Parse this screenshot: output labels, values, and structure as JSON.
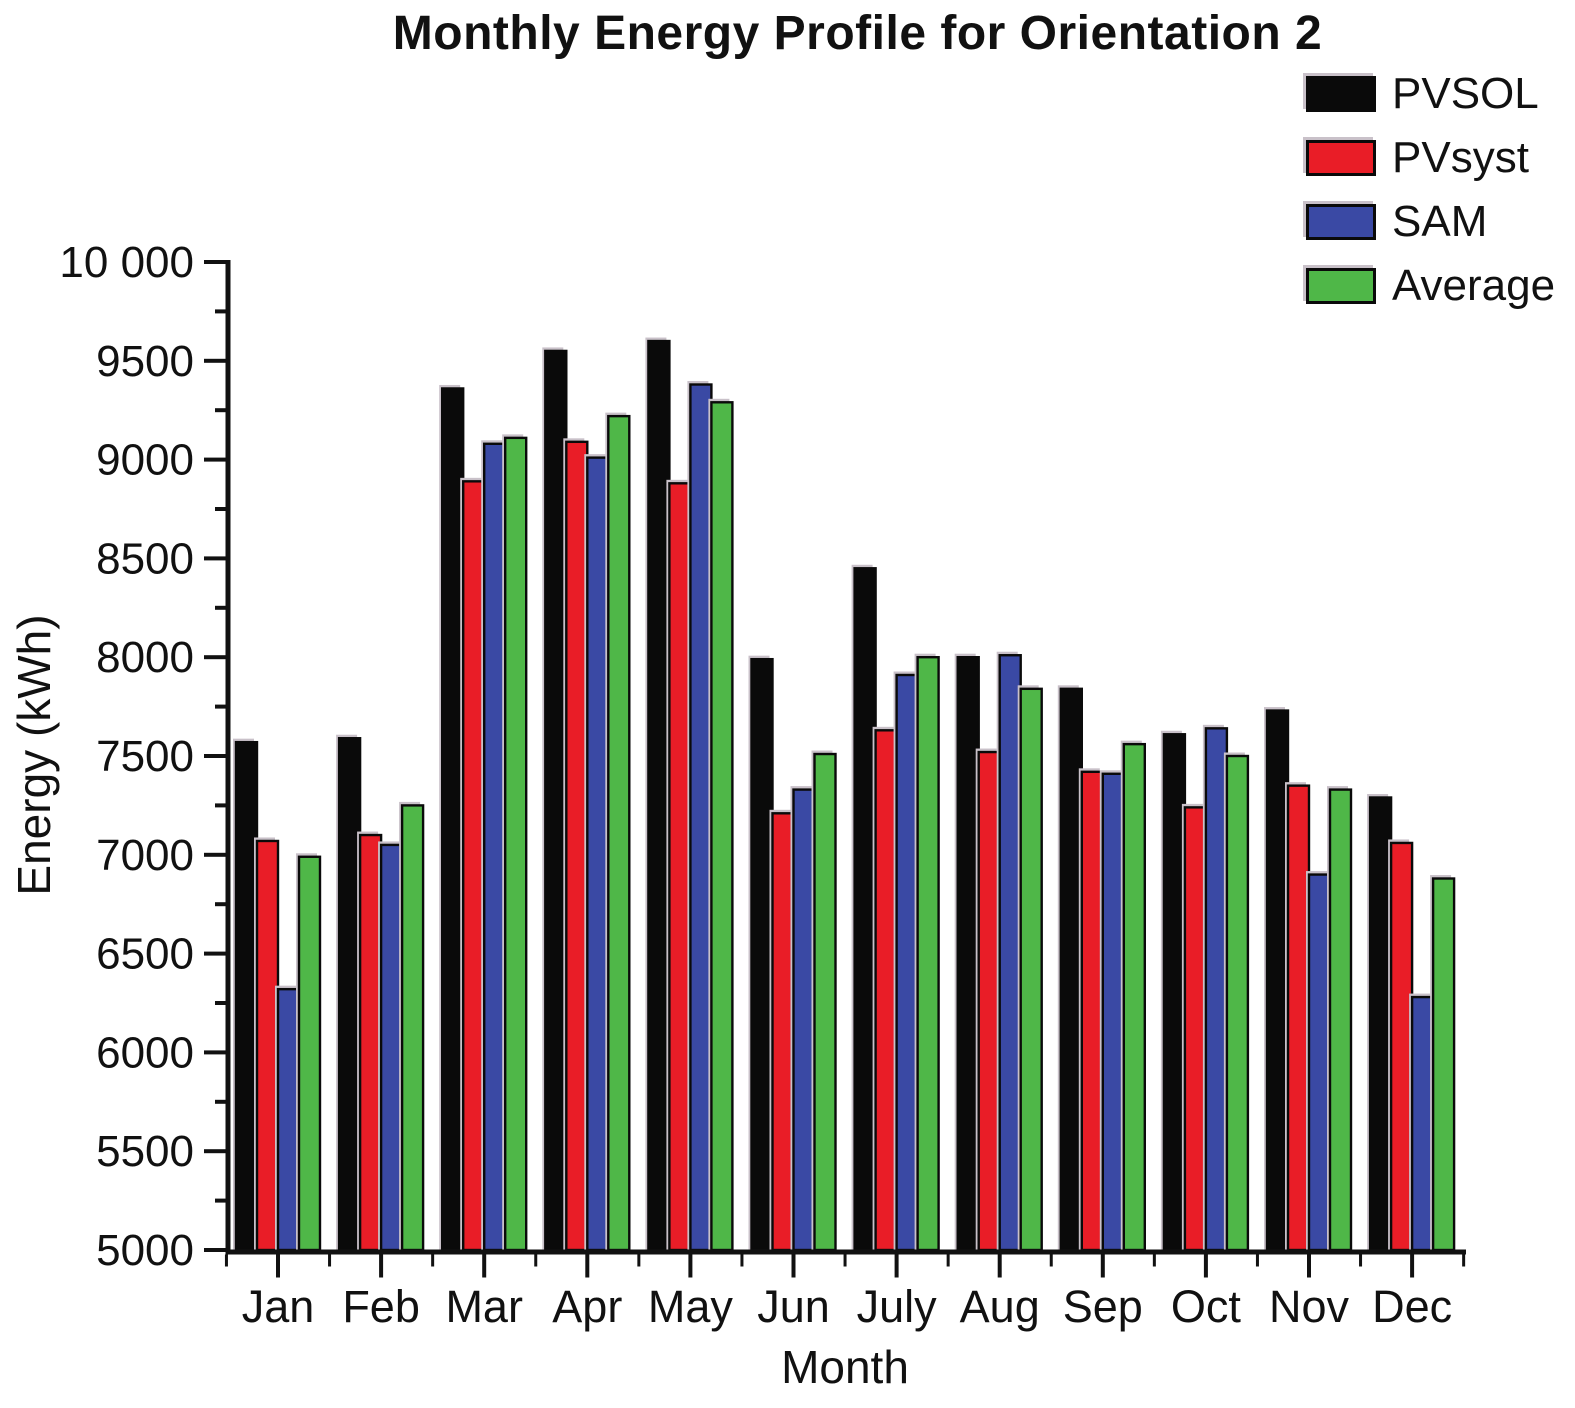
{
  "title": "Monthly Energy Profile for Orientation 2",
  "legend": {
    "position": "top-right",
    "items": [
      {
        "label": "PVSOL",
        "color": "#0a0a0a"
      },
      {
        "label": "PVsyst",
        "color": "#e91d27"
      },
      {
        "label": "SAM",
        "color": "#3a49a4"
      },
      {
        "label": "Average",
        "color": "#4fb748"
      }
    ]
  },
  "chart_data": {
    "type": "bar",
    "title": "Monthly Energy Profile for Orientation 2",
    "xlabel": "Month",
    "ylabel": "Energy (kWh)",
    "ylim": [
      5000,
      10000
    ],
    "ytick_interval": 500,
    "ytick_minor_interval": 250,
    "ytick_labels": [
      "5000",
      "5500",
      "6000",
      "6500",
      "7000",
      "7500",
      "8000",
      "8500",
      "9000",
      "9500",
      "10 000"
    ],
    "grid": false,
    "legend_position": "top-right",
    "categories": [
      "Jan",
      "Feb",
      "Mar",
      "Apr",
      "May",
      "Jun",
      "July",
      "Aug",
      "Sep",
      "Oct",
      "Nov",
      "Dec"
    ],
    "series": [
      {
        "name": "PVSOL",
        "color": "#0a0a0a",
        "values": [
          7570,
          7590,
          9360,
          9550,
          9600,
          7990,
          8450,
          8000,
          7840,
          7610,
          7730,
          7290
        ]
      },
      {
        "name": "PVsyst",
        "color": "#e91d27",
        "values": [
          7070,
          7100,
          8890,
          9090,
          8880,
          7210,
          7630,
          7520,
          7420,
          7240,
          7350,
          7060
        ]
      },
      {
        "name": "SAM",
        "color": "#3a49a4",
        "values": [
          6320,
          7050,
          9080,
          9010,
          9380,
          7330,
          7910,
          8010,
          7410,
          7640,
          6900,
          6280
        ]
      },
      {
        "name": "Average",
        "color": "#4fb748",
        "values": [
          6990,
          7250,
          9110,
          9220,
          9290,
          7510,
          8000,
          7840,
          7560,
          7500,
          7330,
          6880
        ]
      }
    ]
  },
  "style": {
    "axis_color": "#111111",
    "bar_outline": "#0a0a0a",
    "bar_shadow": "#c9c1c9",
    "tick_label_color": "#111111"
  }
}
